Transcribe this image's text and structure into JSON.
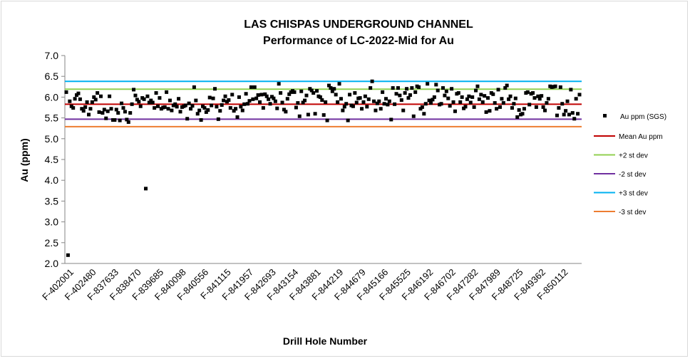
{
  "chart_data": {
    "type": "scatter",
    "title": "LAS CHISPAS UNDERGROUND CHANNEL",
    "subtitle": "Performance of LC-2022-Mid for Au",
    "xlabel": "Drill Hole Number",
    "ylabel": "Au (ppm)",
    "ylim": [
      2.0,
      7.0
    ],
    "yticks": [
      "2.0",
      "2.5",
      "3.0",
      "3.5",
      "4.0",
      "4.5",
      "5.0",
      "5.5",
      "6.0",
      "6.5",
      "7.0"
    ],
    "grid": false,
    "legend_position": "right",
    "x_tick_labels": [
      "F-402001",
      "F-402480",
      "F-837633",
      "F-838470",
      "F-839685",
      "F-840098",
      "F-840556",
      "F-841115",
      "F-841957",
      "F-842693",
      "F-843154",
      "F-843881",
      "F-844219",
      "F-844679",
      "F-845166",
      "F-845525",
      "F-846192",
      "F-846702",
      "F-847282",
      "F-847989",
      "F-848725",
      "F-849362",
      "F-850112"
    ],
    "reference_lines": [
      {
        "name": "Mean Au ppm",
        "value": 5.83,
        "color": "#c00000"
      },
      {
        "name": "+2 st dev",
        "value": 6.19,
        "color": "#92d050"
      },
      {
        "name": "-2 st dev",
        "value": 5.47,
        "color": "#7030a0"
      },
      {
        "name": "+3 st dev",
        "value": 6.38,
        "color": "#00b0f0"
      },
      {
        "name": "-3 st dev",
        "value": 5.29,
        "color": "#ed7d31"
      }
    ],
    "series": [
      {
        "name": "Au ppm (SGS)",
        "color": "#000000",
        "marker": "square",
        "values": [
          6.12,
          2.2,
          5.9,
          5.78,
          5.74,
          5.96,
          6.05,
          6.09,
          5.95,
          5.72,
          5.67,
          5.76,
          5.88,
          5.58,
          5.72,
          5.88,
          6.0,
          5.94,
          6.1,
          5.64,
          6.02,
          5.62,
          5.7,
          5.49,
          5.66,
          6.02,
          5.72,
          5.45,
          5.45,
          5.7,
          5.62,
          5.44,
          5.85,
          5.74,
          5.65,
          5.46,
          5.4,
          5.62,
          5.83,
          6.18,
          6.04,
          5.94,
          5.89,
          5.78,
          5.98,
          5.95,
          3.8,
          6.02,
          5.87,
          5.92,
          5.87,
          5.74,
          6.1,
          5.78,
          5.98,
          5.72,
          5.75,
          5.76,
          6.12,
          5.72,
          5.92,
          5.68,
          5.8,
          5.83,
          5.77,
          5.96,
          5.65,
          5.76,
          5.78,
          5.8,
          5.48,
          5.85,
          5.72,
          5.79,
          6.24,
          5.92,
          5.6,
          5.68,
          5.45,
          5.78,
          5.74,
          5.64,
          5.69,
          5.99,
          5.8,
          5.97,
          6.2,
          5.77,
          5.47,
          5.67,
          5.81,
          5.92,
          6.02,
          5.89,
          5.93,
          5.74,
          6.06,
          5.67,
          5.72,
          5.52,
          6.0,
          5.77,
          5.68,
          5.83,
          6.08,
          5.84,
          5.91,
          6.24,
          5.95,
          6.24,
          5.97,
          6.05,
          5.88,
          6.06,
          5.74,
          6.07,
          6.02,
          5.95,
          5.84,
          6.01,
          5.97,
          5.9,
          5.73,
          6.32,
          6.1,
          5.87,
          5.7,
          5.65,
          5.96,
          6.07,
          6.12,
          6.15,
          6.12,
          5.75,
          5.86,
          5.54,
          6.14,
          5.87,
          5.92,
          6.04,
          5.58,
          6.2,
          6.16,
          6.1,
          5.6,
          6.15,
          6.02,
          6.0,
          5.93,
          5.57,
          5.88,
          5.44,
          6.28,
          6.22,
          6.14,
          6.2,
          6.06,
          5.88,
          6.32,
          5.96,
          5.68,
          5.77,
          5.84,
          5.44,
          6.06,
          5.8,
          5.78,
          6.1,
          5.87,
          5.97,
          5.98,
          5.72,
          5.88,
          6.02,
          5.77,
          5.95,
          6.22,
          6.38,
          5.9,
          5.68,
          5.85,
          5.9,
          5.72,
          6.12,
          5.84,
          5.96,
          5.82,
          5.9,
          5.46,
          6.22,
          5.83,
          6.08,
          6.22,
          6.04,
          5.93,
          5.68,
          6.1,
          6.2,
          5.98,
          6.05,
          6.22,
          5.54,
          6.12,
          6.26,
          6.24,
          5.72,
          5.76,
          5.6,
          5.84,
          6.32,
          5.92,
          5.86,
          5.94,
          6.0,
          6.3,
          6.16,
          5.82,
          5.84,
          6.22,
          6.04,
          6.14,
          5.97,
          5.79,
          6.2,
          5.88,
          5.66,
          6.08,
          6.1,
          5.88,
          6.0,
          5.73,
          5.77,
          5.95,
          6.02,
          5.87,
          6.0,
          5.76,
          6.16,
          6.26,
          5.95,
          6.06,
          5.88,
          6.03,
          5.64,
          5.98,
          5.67,
          6.1,
          6.07,
          5.86,
          5.72,
          6.18,
          5.76,
          5.96,
          5.86,
          6.22,
          6.28,
          5.95,
          6.02,
          5.74,
          5.84,
          5.97,
          5.52,
          5.69,
          5.58,
          5.6,
          5.72,
          6.1,
          6.12,
          5.82,
          6.08,
          6.1,
          5.98,
          5.76,
          6.02,
          5.96,
          6.03,
          5.76,
          5.68,
          5.86,
          5.96,
          6.26,
          6.24,
          6.25,
          6.26,
          5.56,
          5.74,
          6.24,
          5.84,
          5.58,
          5.67,
          5.9,
          5.58,
          6.18,
          5.62,
          5.48,
          5.96,
          5.6,
          6.06
        ]
      }
    ]
  }
}
